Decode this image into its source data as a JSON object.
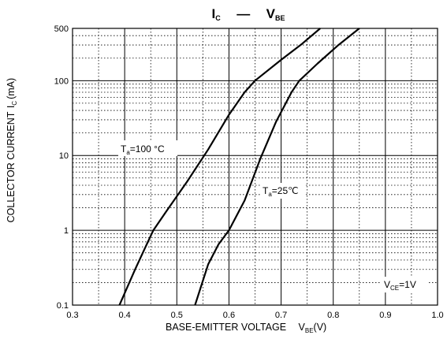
{
  "chart_data": {
    "type": "line",
    "title": {
      "left_symbol": "I",
      "left_subscript": "C",
      "right_symbol": "V",
      "right_subscript": "BE"
    },
    "xlabel": {
      "text": "BASE-EMITTER VOLTAGE",
      "symbol": "V",
      "subscript": "BE",
      "unit": "(V)"
    },
    "ylabel": {
      "text": "COLLECTOR CURRENT",
      "symbol": "I",
      "subscript": "C",
      "unit": "(mA)"
    },
    "xlim": [
      0.3,
      1.0
    ],
    "ylim": [
      0.1,
      500
    ],
    "y_scale": "log",
    "grid": true,
    "x_ticks": [
      "0.3",
      "0.4",
      "0.5",
      "0.6",
      "0.7",
      "0.8",
      "0.9",
      "1.0"
    ],
    "y_ticks": [
      {
        "value": 0.1,
        "label": "0.1"
      },
      {
        "value": 1,
        "label": "1"
      },
      {
        "value": 10,
        "label": "10"
      },
      {
        "value": 100,
        "label": "100"
      },
      {
        "value": 500,
        "label": "500"
      }
    ],
    "series": [
      {
        "name": "Ta=100°C",
        "label": {
          "symbol": "T",
          "subscript": "a",
          "rest": "=100 °C"
        },
        "points": [
          [
            0.39,
            0.1
          ],
          [
            0.42,
            0.3
          ],
          [
            0.44,
            0.6
          ],
          [
            0.455,
            1.0
          ],
          [
            0.48,
            1.8
          ],
          [
            0.52,
            4.5
          ],
          [
            0.56,
            12
          ],
          [
            0.6,
            35
          ],
          [
            0.63,
            70
          ],
          [
            0.65,
            100
          ],
          [
            0.7,
            190
          ],
          [
            0.74,
            310
          ],
          [
            0.775,
            500
          ]
        ]
      },
      {
        "name": "Ta=25°C",
        "label": {
          "symbol": "T",
          "subscript": "a",
          "rest": "=25℃"
        },
        "points": [
          [
            0.535,
            0.1
          ],
          [
            0.56,
            0.35
          ],
          [
            0.58,
            0.65
          ],
          [
            0.6,
            1.0
          ],
          [
            0.63,
            2.5
          ],
          [
            0.66,
            9
          ],
          [
            0.69,
            28
          ],
          [
            0.72,
            70
          ],
          [
            0.735,
            100
          ],
          [
            0.77,
            170
          ],
          [
            0.81,
            300
          ],
          [
            0.85,
            500
          ]
        ]
      }
    ],
    "annotation": {
      "symbol": "V",
      "subscript": "CE",
      "rest": "=1V"
    }
  }
}
